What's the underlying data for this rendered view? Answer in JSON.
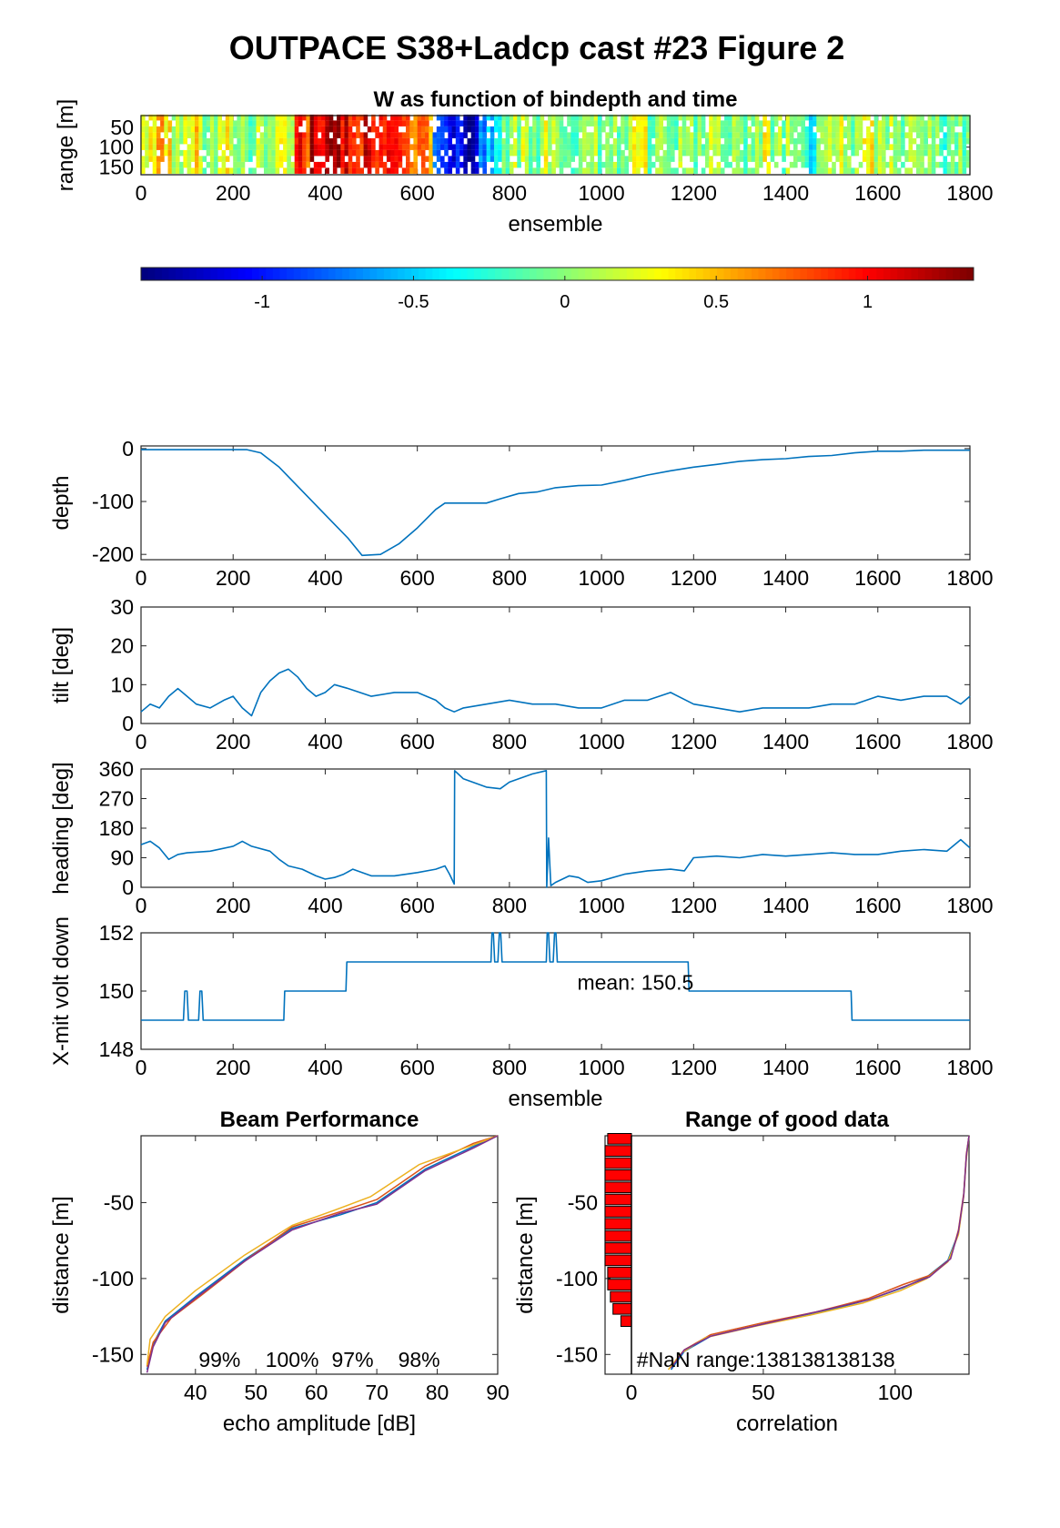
{
  "figure": {
    "title": "OUTPACE S38+Ladcp cast #23 Figure 2"
  },
  "colors": {
    "line": "#0072bd",
    "axis": "#262626",
    "bar_fill": "#ff0000",
    "beam": [
      "#0072bd",
      "#d95319",
      "#edb120",
      "#7e2f8e"
    ]
  },
  "chart_data": [
    {
      "id": "w_image",
      "type": "heatmap",
      "title": "W as function of bindepth and time",
      "xlabel": "ensemble",
      "ylabel": "range [m]",
      "xlim": [
        0,
        1800
      ],
      "ylim": [
        170,
        20
      ],
      "xticks": [
        0,
        200,
        400,
        600,
        800,
        1000,
        1200,
        1400,
        1600,
        1800
      ],
      "yticks": [
        50,
        100,
        150
      ],
      "colormap": "jet",
      "clim": [
        -1.4,
        1.35
      ],
      "column_values": [
        0.3,
        0.5,
        0.2,
        0.4,
        0.1,
        0.3,
        0.2,
        0.0,
        0.1,
        0.2,
        0.9,
        1.2,
        1.3,
        1.1,
        1.0,
        0.9,
        1.0,
        0.8,
        0.6,
        -0.8,
        -1.0,
        -1.3,
        -0.6,
        -0.2,
        0.1,
        0.0,
        0.2,
        0.1,
        -0.1,
        0.0,
        0.1,
        0.0,
        0.2,
        -0.1,
        0.0,
        0.1,
        0.0,
        0.1,
        0.0,
        -0.1,
        0.2,
        0.0,
        0.1,
        -0.3,
        0.0,
        0.1,
        0.0,
        0.2,
        0.1,
        0.0,
        0.0,
        0.1,
        -0.1,
        0.0
      ]
    },
    {
      "id": "colorbar",
      "type": "colorbar",
      "clim": [
        -1.4,
        1.35
      ],
      "ticks": [
        -1,
        -0.5,
        0,
        0.5,
        1
      ],
      "tick_labels": [
        "-1",
        "-0.5",
        "0",
        "0.5",
        "1"
      ]
    },
    {
      "id": "depth",
      "type": "line",
      "ylabel": "depth",
      "xlim": [
        0,
        1800
      ],
      "ylim": [
        -210,
        5
      ],
      "xticks": [
        0,
        200,
        400,
        600,
        800,
        1000,
        1200,
        1400,
        1600,
        1800
      ],
      "yticks": [
        0,
        -100,
        -200
      ],
      "x": [
        0,
        230,
        260,
        300,
        350,
        400,
        450,
        480,
        520,
        560,
        600,
        640,
        660,
        750,
        780,
        820,
        860,
        900,
        950,
        1000,
        1050,
        1100,
        1150,
        1200,
        1250,
        1300,
        1350,
        1400,
        1450,
        1500,
        1550,
        1600,
        1650,
        1700,
        1800
      ],
      "y": [
        -2,
        -2,
        -8,
        -35,
        -80,
        -125,
        -170,
        -202,
        -200,
        -180,
        -150,
        -115,
        -103,
        -103,
        -95,
        -85,
        -82,
        -74,
        -70,
        -69,
        -60,
        -50,
        -42,
        -35,
        -30,
        -24,
        -21,
        -19,
        -15,
        -13,
        -8,
        -5,
        -5,
        -3,
        -3
      ]
    },
    {
      "id": "tilt",
      "type": "line",
      "ylabel": "tilt [deg]",
      "xlim": [
        0,
        1800
      ],
      "ylim": [
        0,
        30
      ],
      "xticks": [
        0,
        200,
        400,
        600,
        800,
        1000,
        1200,
        1400,
        1600,
        1800
      ],
      "yticks": [
        0,
        10,
        20,
        30
      ],
      "x": [
        0,
        20,
        40,
        60,
        80,
        100,
        120,
        150,
        180,
        200,
        220,
        240,
        260,
        280,
        300,
        320,
        340,
        360,
        380,
        400,
        420,
        450,
        500,
        550,
        600,
        640,
        660,
        680,
        700,
        750,
        800,
        850,
        900,
        950,
        1000,
        1050,
        1100,
        1150,
        1200,
        1250,
        1300,
        1350,
        1400,
        1450,
        1500,
        1550,
        1600,
        1650,
        1700,
        1750,
        1780,
        1800
      ],
      "y": [
        3,
        5,
        4,
        7,
        9,
        7,
        5,
        4,
        6,
        7,
        4,
        2,
        8,
        11,
        13,
        14,
        12,
        9,
        7,
        8,
        10,
        9,
        7,
        8,
        8,
        6,
        4,
        3,
        4,
        5,
        6,
        5,
        5,
        4,
        4,
        6,
        6,
        8,
        5,
        4,
        3,
        4,
        4,
        4,
        5,
        5,
        7,
        6,
        7,
        7,
        5,
        7
      ]
    },
    {
      "id": "heading",
      "type": "line",
      "ylabel": "heading [deg]",
      "xlim": [
        0,
        1800
      ],
      "ylim": [
        0,
        360
      ],
      "xticks": [
        0,
        200,
        400,
        600,
        800,
        1000,
        1200,
        1400,
        1600,
        1800
      ],
      "yticks": [
        0,
        90,
        180,
        270,
        360
      ],
      "x": [
        0,
        20,
        40,
        60,
        80,
        100,
        150,
        200,
        220,
        240,
        280,
        300,
        320,
        350,
        380,
        400,
        420,
        440,
        460,
        480,
        500,
        550,
        600,
        640,
        660,
        670,
        680,
        681,
        700,
        750,
        780,
        800,
        850,
        880,
        881,
        885,
        890,
        900,
        930,
        950,
        970,
        1000,
        1050,
        1100,
        1150,
        1180,
        1200,
        1250,
        1300,
        1350,
        1400,
        1450,
        1500,
        1550,
        1600,
        1650,
        1700,
        1750,
        1780,
        1800
      ],
      "y": [
        130,
        140,
        120,
        85,
        100,
        105,
        110,
        125,
        140,
        125,
        110,
        85,
        65,
        55,
        35,
        25,
        30,
        40,
        55,
        45,
        35,
        35,
        45,
        55,
        65,
        40,
        10,
        355,
        330,
        305,
        300,
        320,
        345,
        355,
        0,
        150,
        5,
        15,
        35,
        30,
        15,
        20,
        40,
        50,
        55,
        50,
        90,
        95,
        90,
        100,
        95,
        100,
        105,
        100,
        100,
        110,
        115,
        110,
        145,
        120
      ]
    },
    {
      "id": "voltage",
      "type": "line",
      "ylabel": "X-mit volt down",
      "xlabel": "ensemble",
      "xlim": [
        0,
        1800
      ],
      "ylim": [
        148,
        152
      ],
      "xticks": [
        0,
        200,
        400,
        600,
        800,
        1000,
        1200,
        1400,
        1600,
        1800
      ],
      "yticks": [
        148,
        150,
        152
      ],
      "annotation": "mean: 150.5",
      "x": [
        0,
        92,
        95,
        100,
        103,
        125,
        128,
        132,
        135,
        310,
        312,
        445,
        447,
        760,
        762,
        765,
        768,
        775,
        778,
        781,
        784,
        880,
        882,
        885,
        888,
        895,
        898,
        901,
        904,
        1188,
        1190,
        1542,
        1544,
        1800
      ],
      "y": [
        149,
        149,
        150,
        150,
        149,
        149,
        150,
        150,
        149,
        149,
        150,
        150,
        151,
        151,
        152,
        152,
        151,
        151,
        152,
        152,
        151,
        151,
        152,
        152,
        151,
        151,
        152,
        152,
        151,
        151,
        150,
        150,
        149,
        149
      ]
    },
    {
      "id": "beam_performance",
      "type": "line",
      "title": "Beam Performance",
      "xlabel": "echo amplitude [dB]",
      "ylabel": "distance [m]",
      "xlim": [
        31,
        90
      ],
      "ylim": [
        -163,
        -6
      ],
      "xticks": [
        40,
        50,
        60,
        70,
        80,
        90
      ],
      "yticks": [
        -50,
        -100,
        -150
      ],
      "percent_labels": [
        "99%",
        "100%",
        "97%",
        "98%"
      ],
      "percent_positions": [
        44,
        56,
        66,
        77
      ],
      "series": [
        {
          "x": [
            32,
            33,
            35,
            40,
            48,
            56,
            64,
            70,
            78,
            86,
            90
          ],
          "y": [
            -160,
            -143,
            -128,
            -112,
            -88,
            -67,
            -58,
            -50,
            -28,
            -13,
            -6
          ]
        },
        {
          "x": [
            32,
            33,
            36,
            41,
            49,
            56,
            64,
            70,
            78,
            86,
            90
          ],
          "y": [
            -158,
            -142,
            -126,
            -111,
            -86,
            -66,
            -56,
            -48,
            -26,
            -11,
            -6
          ]
        },
        {
          "x": [
            32,
            32.5,
            35,
            40,
            48,
            56,
            63,
            69,
            77,
            86,
            90
          ],
          "y": [
            -157,
            -140,
            -125,
            -108,
            -85,
            -65,
            -55,
            -46,
            -25,
            -12,
            -6
          ]
        },
        {
          "x": [
            32,
            33,
            35,
            40,
            48,
            56,
            64,
            70,
            78,
            86,
            90
          ],
          "y": [
            -162,
            -145,
            -129,
            -113,
            -89,
            -68,
            -57,
            -51,
            -29,
            -14,
            -6
          ]
        }
      ]
    },
    {
      "id": "range_good_data",
      "type": "line",
      "title": "Range of good data",
      "xlabel": "correlation",
      "ylabel": "distance [m]",
      "xlim": [
        -10,
        128
      ],
      "ylim": [
        -163,
        -6
      ],
      "xticks": [
        0,
        50,
        100
      ],
      "yticks": [
        -50,
        -100,
        -150
      ],
      "annotation": "#NaN range:138138138138",
      "bars": {
        "y": [
          -8,
          -16,
          -24,
          -32,
          -40,
          -48,
          -56,
          -64,
          -72,
          -80,
          -88,
          -96,
          -104,
          -112,
          -120,
          -128
        ],
        "values": [
          9,
          10,
          10,
          10,
          10,
          10,
          10,
          10,
          10,
          10,
          10,
          9,
          9,
          8,
          7,
          4
        ]
      },
      "series": [
        {
          "x": [
            15,
            20,
            30,
            50,
            70,
            90,
            103,
            112,
            120,
            124,
            126,
            127,
            128
          ],
          "y": [
            -160,
            -148,
            -138,
            -130,
            -123,
            -114,
            -106,
            -99,
            -88,
            -70,
            -45,
            -20,
            -6
          ]
        },
        {
          "x": [
            15,
            20,
            30,
            50,
            70,
            90,
            103,
            113,
            121,
            124,
            126,
            127,
            128
          ],
          "y": [
            -158,
            -147,
            -137,
            -129,
            -122,
            -113,
            -104,
            -98,
            -87,
            -68,
            -44,
            -18,
            -6
          ]
        },
        {
          "x": [
            14,
            19,
            28,
            48,
            68,
            88,
            102,
            112,
            120,
            124,
            126,
            127,
            128
          ],
          "y": [
            -160,
            -149,
            -139,
            -131,
            -124,
            -116,
            -108,
            -100,
            -89,
            -71,
            -46,
            -21,
            -6
          ]
        },
        {
          "x": [
            15,
            20,
            30,
            50,
            70,
            90,
            104,
            113,
            121,
            124,
            126,
            127,
            128
          ],
          "y": [
            -159,
            -147,
            -138,
            -130,
            -122,
            -114,
            -105,
            -99,
            -87,
            -69,
            -45,
            -19,
            -6
          ]
        }
      ]
    }
  ]
}
